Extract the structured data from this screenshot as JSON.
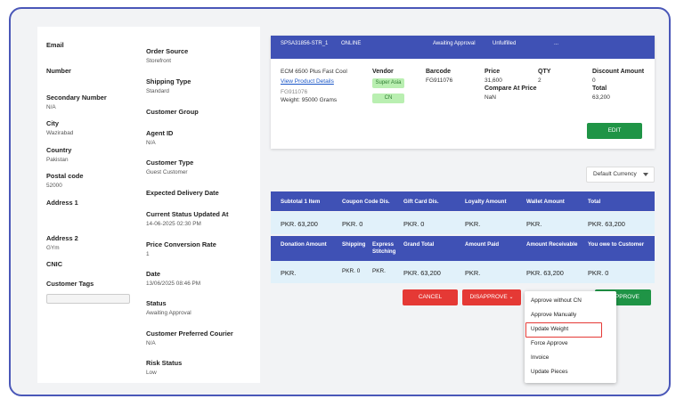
{
  "customer": {
    "email_label": "Email",
    "number_label": "Number",
    "secondary_number_label": "Secondary Number",
    "secondary_number": "N/A",
    "city_label": "City",
    "city": "Wazirabad",
    "country_label": "Country",
    "country": "Pakistan",
    "postal_code_label": "Postal code",
    "postal_code": "52000",
    "address1_label": "Address 1",
    "address2_label": "Address 2",
    "address2": "GYm",
    "cnic_label": "CNIC",
    "tags_label": "Customer Tags"
  },
  "order_info": {
    "source_label": "Order Source",
    "source": "Storefront",
    "shipping_type_label": "Shipping Type",
    "shipping_type": "Standard",
    "customer_group_label": "Customer Group",
    "agent_id_label": "Agent ID",
    "agent_id": "N/A",
    "customer_type_label": "Customer Type",
    "customer_type": "Guest Customer",
    "expected_delivery_label": "Expected Delivery Date",
    "status_updated_label": "Current Status Updated At",
    "status_updated": "14-06-2025 02:30 PM",
    "conversion_rate_label": "Price Conversion Rate",
    "conversion_rate": "1",
    "date_label": "Date",
    "date": "13/06/2025 08:46 PM",
    "status_label": "Status",
    "status": "Awaiting Approval",
    "courier_label": "Customer Preferred Courier",
    "courier": "N/A",
    "risk_label": "Risk Status",
    "risk": "Low"
  },
  "order_header": {
    "id": "SPSA31856-STR_1",
    "channel": "ONLINE",
    "approval": "Awaiting Approval",
    "fulfillment": "Unfulfilled",
    "extra": "..."
  },
  "product": {
    "name": "ECM 6500 Plus Fast Cool",
    "view_link": "View Product Details",
    "sku": "FG911076",
    "weight": "Weight:   95000 Grams",
    "vendor_label": "Vendor",
    "vendor_tag1": "Super Asia",
    "vendor_tag2": "CN",
    "barcode_label": "Barcode",
    "barcode": "FG911076",
    "price_label": "Price",
    "price": "31,600",
    "compare_label": "Compare At Price",
    "compare": "NaN",
    "qty_label": "QTY",
    "qty": "2",
    "discount_label": "Discount Amount",
    "discount": "0",
    "total_label": "Total",
    "total": "63,200",
    "edit_button": "EDIT"
  },
  "currency_select": "Default Currency",
  "totals1": {
    "headers": [
      "Subtotal   1 Item",
      "Coupon Code Dis.",
      "Gift Card Dis.",
      "Loyalty Amount",
      "Wallet Amount",
      "Total"
    ],
    "values": [
      "PKR. 63,200",
      "PKR. 0",
      "PKR. 0",
      "PKR.",
      "PKR.",
      "PKR. 63,200"
    ]
  },
  "totals2": {
    "headers": [
      "Donation Amount",
      "Shipping",
      "Express Stitching",
      "Grand Total",
      "Amount Paid",
      "Amount Receivable",
      "You owe to Customer"
    ],
    "values": [
      "PKR.",
      "PKR. 0",
      "PKR.",
      "PKR. 63,200",
      "PKR.",
      "PKR. 63,200",
      "PKR. 0"
    ]
  },
  "actions": {
    "cancel": "CANCEL",
    "disapprove": "DISAPPROVE",
    "approve": "APPROVE"
  },
  "approve_menu": [
    "Approve without CN",
    "Approve Manually",
    "Update Weight",
    "Force Approve",
    "Invoice",
    "Update Pieces"
  ],
  "colors": {
    "frame": "#4a57b8",
    "header_blue": "#3f51b5",
    "row_bg": "#e1f1fa",
    "cancel_red": "#e53935",
    "approve_green": "#1f9446",
    "highlight": "#e53935"
  }
}
